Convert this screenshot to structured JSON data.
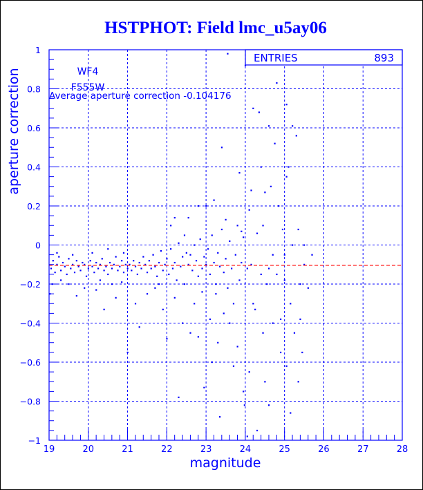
{
  "chart_data": {
    "type": "scatter",
    "title": "HSTPHOT: Field lmc_u5ay06",
    "xlabel": "magnitude",
    "ylabel": "aperture correction",
    "xlim": [
      19,
      28
    ],
    "ylim": [
      -1,
      1
    ],
    "xticks": [
      "19",
      "20",
      "21",
      "22",
      "23",
      "24",
      "25",
      "26",
      "27",
      "28"
    ],
    "yticks": [
      "-1",
      "-0.8",
      "-0.6",
      "-0.4",
      "-0.2",
      "0",
      "0.2",
      "0.4",
      "0.6",
      "0.8",
      "1"
    ],
    "grid": true,
    "annotations": {
      "chip": "WF4",
      "filter": "F555W",
      "average_text": "Average aperture correction -0.104176",
      "average_value": -0.104176,
      "entries_label": "ENTRIES",
      "entries_value": "893"
    },
    "colors": {
      "points": "#0000ff",
      "average_line": "#ff0000",
      "text": "#0000ff"
    },
    "points": [
      [
        19.05,
        -0.12
      ],
      [
        19.1,
        -0.08
      ],
      [
        19.15,
        -0.14
      ],
      [
        19.2,
        -0.1
      ],
      [
        19.25,
        -0.06
      ],
      [
        19.3,
        -0.13
      ],
      [
        19.35,
        -0.09
      ],
      [
        19.4,
        -0.11
      ],
      [
        19.45,
        -0.15
      ],
      [
        19.5,
        -0.07
      ],
      [
        19.55,
        -0.12
      ],
      [
        19.6,
        -0.1
      ],
      [
        19.65,
        -0.14
      ],
      [
        19.7,
        -0.08
      ],
      [
        19.75,
        -0.11
      ],
      [
        19.8,
        -0.13
      ],
      [
        19.85,
        -0.09
      ],
      [
        19.9,
        -0.1
      ],
      [
        19.95,
        -0.16
      ],
      [
        20.0,
        -0.12
      ],
      [
        20.05,
        -0.08
      ],
      [
        20.1,
        -0.11
      ],
      [
        20.15,
        -0.14
      ],
      [
        20.2,
        -0.09
      ],
      [
        20.25,
        -0.12
      ],
      [
        20.3,
        -0.1
      ],
      [
        20.35,
        -0.07
      ],
      [
        20.4,
        -0.13
      ],
      [
        20.45,
        -0.11
      ],
      [
        20.5,
        -0.15
      ],
      [
        20.55,
        -0.09
      ],
      [
        20.6,
        -0.12
      ],
      [
        20.65,
        -0.1
      ],
      [
        20.7,
        -0.06
      ],
      [
        20.75,
        -0.13
      ],
      [
        20.8,
        -0.11
      ],
      [
        20.85,
        -0.08
      ],
      [
        20.9,
        -0.14
      ],
      [
        20.95,
        -0.1
      ],
      [
        21.0,
        -0.12
      ],
      [
        19.02,
        -0.25
      ],
      [
        19.08,
        -0.2
      ],
      [
        19.3,
        -0.18
      ],
      [
        19.6,
        -0.05
      ],
      [
        19.7,
        -0.26
      ],
      [
        19.9,
        -0.22
      ],
      [
        20.1,
        -0.04
      ],
      [
        20.3,
        -0.18
      ],
      [
        20.4,
        -0.33
      ],
      [
        20.6,
        -0.2
      ],
      [
        20.7,
        -0.27
      ],
      [
        20.85,
        -0.19
      ],
      [
        21.0,
        -0.55
      ],
      [
        20.9,
        -0.04
      ],
      [
        19.5,
        -0.2
      ],
      [
        19.2,
        -0.04
      ],
      [
        20.2,
        -0.23
      ],
      [
        20.5,
        -0.02
      ],
      [
        21.05,
        -0.1
      ],
      [
        21.1,
        -0.13
      ],
      [
        21.15,
        -0.08
      ],
      [
        21.2,
        -0.11
      ],
      [
        21.25,
        -0.15
      ],
      [
        21.3,
        -0.09
      ],
      [
        21.35,
        -0.12
      ],
      [
        21.4,
        -0.06
      ],
      [
        21.45,
        -0.1
      ],
      [
        21.5,
        -0.14
      ],
      [
        21.55,
        -0.08
      ],
      [
        21.6,
        -0.12
      ],
      [
        21.65,
        -0.05
      ],
      [
        21.7,
        -0.11
      ],
      [
        21.75,
        -0.16
      ],
      [
        21.8,
        -0.09
      ],
      [
        21.85,
        -0.03
      ],
      [
        21.9,
        -0.13
      ],
      [
        21.95,
        -0.1
      ],
      [
        22.0,
        -0.07
      ],
      [
        22.05,
        -0.15
      ],
      [
        22.1,
        -0.02
      ],
      [
        22.15,
        -0.12
      ],
      [
        22.2,
        -0.09
      ],
      [
        22.25,
        -0.18
      ],
      [
        22.3,
        0.01
      ],
      [
        22.35,
        -0.11
      ],
      [
        22.4,
        -0.06
      ],
      [
        22.45,
        -0.2
      ],
      [
        22.5,
        -0.04
      ],
      [
        21.2,
        -0.3
      ],
      [
        21.3,
        -0.42
      ],
      [
        21.5,
        -0.25
      ],
      [
        21.7,
        -0.22
      ],
      [
        21.9,
        -0.33
      ],
      [
        22.0,
        -0.48
      ],
      [
        22.1,
        0.1
      ],
      [
        22.2,
        -0.27
      ],
      [
        22.3,
        -0.78
      ],
      [
        22.4,
        -0.4
      ],
      [
        22.2,
        0.14
      ],
      [
        21.8,
        -0.2
      ],
      [
        22.45,
        0.05
      ],
      [
        22.55,
        -0.1
      ],
      [
        22.6,
        -0.05
      ],
      [
        22.65,
        -0.13
      ],
      [
        22.7,
        0.0
      ],
      [
        22.75,
        -0.08
      ],
      [
        22.8,
        -0.16
      ],
      [
        22.85,
        0.03
      ],
      [
        22.9,
        -0.12
      ],
      [
        22.95,
        -0.06
      ],
      [
        23.0,
        -0.1
      ],
      [
        23.05,
        -0.02
      ],
      [
        23.1,
        -0.15
      ],
      [
        23.15,
        0.05
      ],
      [
        23.2,
        -0.09
      ],
      [
        23.25,
        -0.2
      ],
      [
        23.3,
        -0.04
      ],
      [
        23.35,
        -0.11
      ],
      [
        23.4,
        0.08
      ],
      [
        23.45,
        -0.14
      ],
      [
        23.5,
        -0.07
      ],
      [
        23.55,
        -0.22
      ],
      [
        23.6,
        0.02
      ],
      [
        23.65,
        -0.12
      ],
      [
        23.7,
        -0.3
      ],
      [
        23.75,
        -0.05
      ],
      [
        23.8,
        0.1
      ],
      [
        23.85,
        -0.18
      ],
      [
        23.9,
        -0.09
      ],
      [
        23.95,
        0.04
      ],
      [
        22.6,
        -0.45
      ],
      [
        22.7,
        -0.3
      ],
      [
        22.8,
        -0.47
      ],
      [
        22.9,
        -0.24
      ],
      [
        22.95,
        -0.73
      ],
      [
        23.0,
        0.2
      ],
      [
        23.1,
        -0.38
      ],
      [
        23.15,
        -0.6
      ],
      [
        23.2,
        0.23
      ],
      [
        23.25,
        -0.25
      ],
      [
        23.3,
        -0.5
      ],
      [
        23.35,
        -0.88
      ],
      [
        23.4,
        0.5
      ],
      [
        23.45,
        -0.35
      ],
      [
        23.5,
        0.13
      ],
      [
        23.6,
        -0.4
      ],
      [
        23.55,
        0.98
      ],
      [
        23.7,
        -0.62
      ],
      [
        23.8,
        -0.52
      ],
      [
        23.9,
        0.07
      ],
      [
        23.85,
        0.37
      ],
      [
        23.95,
        -0.75
      ],
      [
        23.98,
        -0.82
      ],
      [
        22.55,
        0.14
      ],
      [
        22.8,
        0.2
      ],
      [
        24.0,
        0.92
      ],
      [
        24.05,
        -0.12
      ],
      [
        24.1,
        0.18
      ],
      [
        24.15,
        0.28
      ],
      [
        24.2,
        0.7
      ],
      [
        24.25,
        -0.33
      ],
      [
        24.3,
        0.06
      ],
      [
        24.35,
        0.68
      ],
      [
        24.4,
        0.4
      ],
      [
        24.45,
        -0.45
      ],
      [
        24.5,
        0.27
      ],
      [
        24.55,
        -0.2
      ],
      [
        24.6,
        0.61
      ],
      [
        24.65,
        0.3
      ],
      [
        24.7,
        -0.05
      ],
      [
        24.75,
        0.52
      ],
      [
        24.8,
        -0.15
      ],
      [
        24.85,
        0.2
      ],
      [
        24.9,
        -0.38
      ],
      [
        24.95,
        0.08
      ],
      [
        25.0,
        -0.05
      ],
      [
        25.05,
        0.35
      ],
      [
        25.1,
        0.4
      ],
      [
        25.15,
        -0.3
      ],
      [
        25.2,
        0.61
      ],
      [
        25.25,
        -0.45
      ],
      [
        25.3,
        0.56
      ],
      [
        25.35,
        0.08
      ],
      [
        25.4,
        -0.2
      ],
      [
        25.45,
        -0.55
      ],
      [
        25.5,
        0.0
      ],
      [
        25.6,
        -0.22
      ],
      [
        25.7,
        -0.05
      ],
      [
        24.05,
        -0.98
      ],
      [
        24.1,
        -0.65
      ],
      [
        24.2,
        -0.3
      ],
      [
        24.3,
        -0.95
      ],
      [
        24.5,
        -0.7
      ],
      [
        24.6,
        -0.82
      ],
      [
        24.7,
        -0.4
      ],
      [
        24.9,
        -0.55
      ],
      [
        25.05,
        -0.62
      ],
      [
        25.15,
        -0.86
      ],
      [
        25.35,
        -0.7
      ],
      [
        25.4,
        -0.38
      ],
      [
        24.15,
        -0.1
      ],
      [
        24.4,
        -0.15
      ],
      [
        24.6,
        -0.12
      ],
      [
        25.0,
        -0.18
      ],
      [
        25.2,
        0.0
      ],
      [
        25.5,
        -0.1
      ],
      [
        24.45,
        0.1
      ],
      [
        24.8,
        0.83
      ],
      [
        25.05,
        0.72
      ]
    ]
  }
}
